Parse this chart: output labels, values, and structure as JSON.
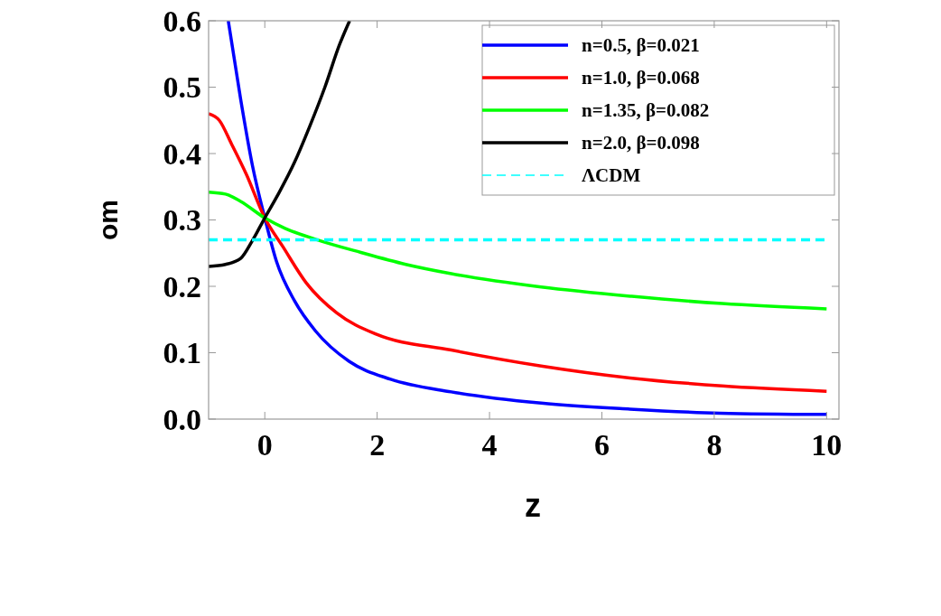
{
  "chart_data": {
    "type": "line",
    "xlabel": "z",
    "ylabel": "om",
    "xlim": [
      -1,
      10.22
    ],
    "ylim": [
      0,
      0.6
    ],
    "xticks": [
      0,
      2,
      4,
      6,
      8,
      10
    ],
    "yticks": [
      {
        "value": 0,
        "label": "0.0"
      },
      {
        "value": 0.1,
        "label": "0.1"
      },
      {
        "value": 0.2,
        "label": "0.2"
      },
      {
        "value": 0.3,
        "label": "0.3"
      },
      {
        "value": 0.4,
        "label": "0.4"
      },
      {
        "value": 0.5,
        "label": "0.5"
      },
      {
        "value": 0.6,
        "label": "0.6"
      }
    ],
    "grid": false,
    "legend": "top right",
    "series": [
      {
        "name": "n=0.5, β=0.021",
        "color": "#0000ff",
        "x": [
          -0.65,
          -0.43,
          -0.22,
          0,
          0.21,
          0.53,
          0.9,
          1.5,
          2.24,
          3.32,
          4.92,
          6.5,
          8.1,
          10
        ],
        "values": [
          0.6,
          0.482,
          0.382,
          0.303,
          0.237,
          0.178,
          0.133,
          0.087,
          0.06,
          0.041,
          0.024,
          0.015,
          0.009,
          0.007
        ]
      },
      {
        "name": "n=1.0, β=0.068",
        "color": "#ff0000",
        "x": [
          -1,
          -0.81,
          -0.59,
          -0.33,
          0,
          0.32,
          0.74,
          1.28,
          1.98,
          3.32,
          4.92,
          6.5,
          8.14,
          10
        ],
        "values": [
          0.46,
          0.45,
          0.414,
          0.369,
          0.303,
          0.26,
          0.205,
          0.16,
          0.128,
          0.104,
          0.08,
          0.062,
          0.05,
          0.042
        ]
      },
      {
        "name": "n=1.35, β=0.082",
        "color": "#00ff00",
        "x": [
          -1,
          -0.7,
          -0.43,
          0,
          0.37,
          0.9,
          1.71,
          2.51,
          3.32,
          4.92,
          6.53,
          8.14,
          10
        ],
        "values": [
          0.342,
          0.339,
          0.328,
          0.303,
          0.287,
          0.271,
          0.251,
          0.233,
          0.219,
          0.199,
          0.185,
          0.174,
          0.166
        ]
      },
      {
        "name": "n=2.0, β=0.098",
        "color": "#000000",
        "x": [
          -1,
          -0.7,
          -0.43,
          -0.22,
          0,
          0.26,
          0.53,
          0.8,
          1.07,
          1.33,
          1.51
        ],
        "values": [
          0.23,
          0.233,
          0.242,
          0.269,
          0.303,
          0.342,
          0.387,
          0.441,
          0.5,
          0.564,
          0.6
        ]
      },
      {
        "name": "ΛCDM",
        "color": "#00ffff",
        "line_style": "dashed",
        "x": [
          -1,
          10
        ],
        "values": [
          0.27,
          0.27
        ]
      }
    ]
  }
}
